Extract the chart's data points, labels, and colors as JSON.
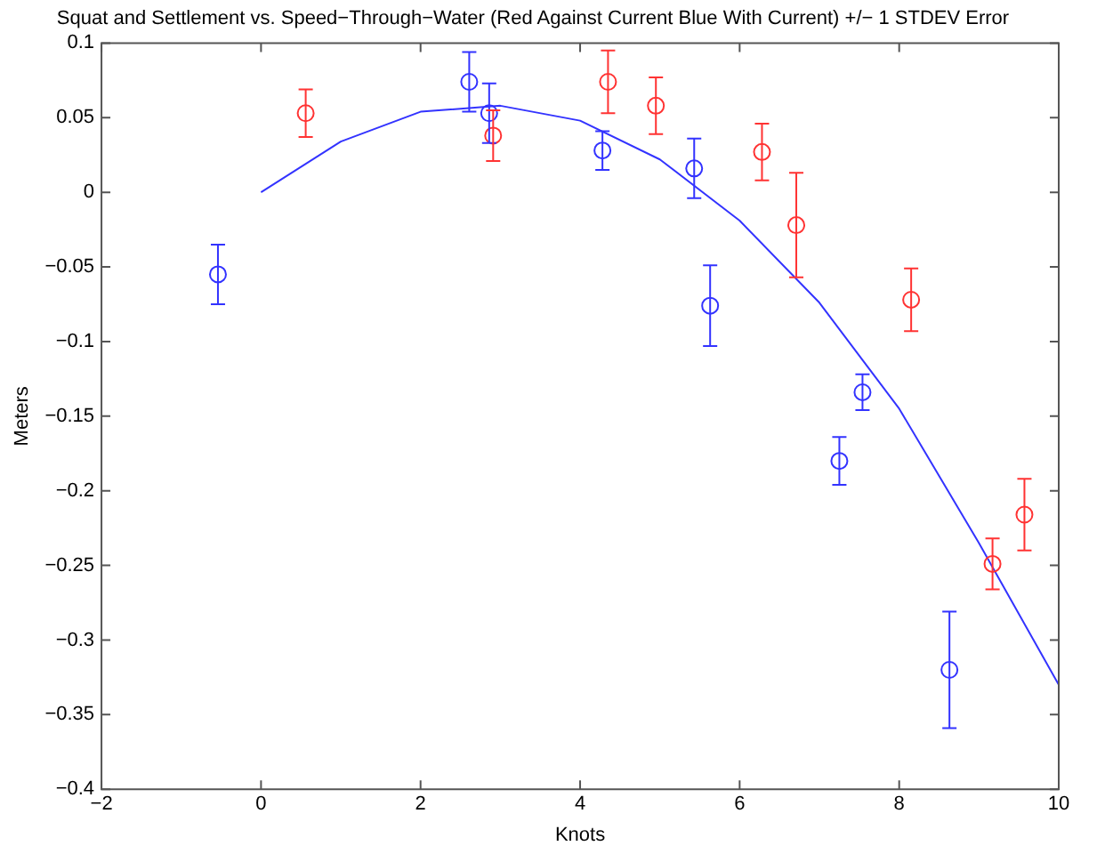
{
  "chart_data": {
    "type": "scatter",
    "title": "Squat and Settlement vs. Speed−Through−Water (Red Against Current Blue With Current) +/− 1 STDEV Error",
    "xlabel": "Knots",
    "ylabel": "Meters",
    "xlim": [
      -2,
      10
    ],
    "xticks": [
      -2,
      0,
      2,
      4,
      6,
      8,
      10
    ],
    "ylim": [
      -0.4,
      0.1
    ],
    "yticks": [
      -0.4,
      -0.35,
      -0.3,
      -0.25,
      -0.2,
      -0.15,
      -0.1,
      -0.05,
      0,
      0.05,
      0.1
    ],
    "grid": false,
    "legend": false,
    "marker": "circle",
    "series": [
      {
        "type": "scatter",
        "color": "#3333ff",
        "x": [
          -0.54,
          2.61,
          2.86,
          4.28,
          5.43,
          5.63,
          7.25,
          7.54,
          8.63
        ],
        "values": [
          -0.055,
          0.074,
          0.053,
          0.028,
          0.016,
          -0.076,
          -0.18,
          -0.134,
          -0.32
        ],
        "errors": [
          0.02,
          0.02,
          0.02,
          0.013,
          0.02,
          0.027,
          0.016,
          0.012,
          0.039
        ]
      },
      {
        "type": "scatter",
        "color": "#ff3333",
        "x": [
          0.56,
          2.91,
          4.35,
          4.95,
          6.28,
          6.71,
          8.15,
          9.17,
          9.57
        ],
        "values": [
          0.053,
          0.038,
          0.074,
          0.058,
          0.027,
          -0.022,
          -0.072,
          -0.249,
          -0.216
        ],
        "errors": [
          0.016,
          0.017,
          0.021,
          0.019,
          0.019,
          0.035,
          0.021,
          0.017,
          0.024
        ]
      },
      {
        "type": "line",
        "color": "#3333ff",
        "marker": "none",
        "x": [
          0,
          1,
          2,
          3,
          4,
          5,
          6,
          7,
          8,
          9,
          10
        ],
        "values": [
          0,
          0.034,
          0.054,
          0.058,
          0.048,
          0.022,
          -0.019,
          -0.074,
          -0.145,
          -0.235,
          -0.33
        ]
      }
    ]
  }
}
